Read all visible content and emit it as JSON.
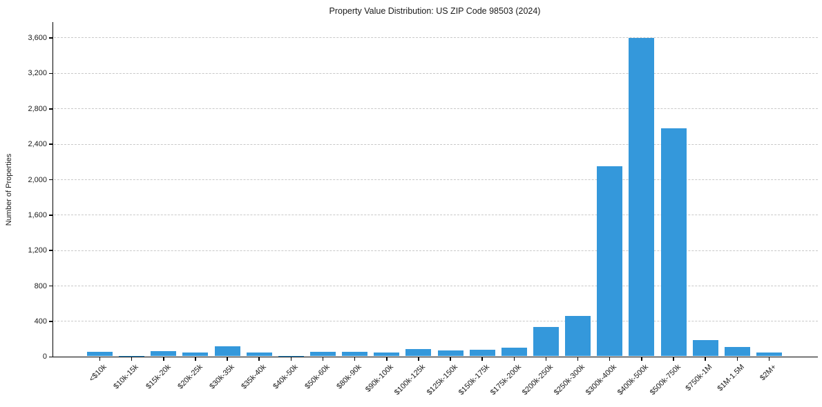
{
  "chart_data": {
    "type": "bar",
    "title": "Property Value Distribution: US ZIP Code 98503 (2024)",
    "xlabel": "",
    "ylabel": "Number of Properties",
    "categories": [
      "<$10k",
      "$10k-15k",
      "$15k-20k",
      "$20k-25k",
      "$30k-35k",
      "$35k-40k",
      "$40k-50k",
      "$50k-60k",
      "$80k-90k",
      "$90k-100k",
      "$100k-125k",
      "$125k-150k",
      "$150k-175k",
      "$175k-200k",
      "$200k-250k",
      "$250k-300k",
      "$300k-400k",
      "$400k-500k",
      "$500k-750k",
      "$750k-1M",
      "$1M-1.5M",
      "$2M+"
    ],
    "values": [
      55,
      10,
      65,
      50,
      115,
      45,
      10,
      55,
      55,
      45,
      90,
      75,
      80,
      100,
      340,
      460,
      2150,
      3600,
      2580,
      190,
      110,
      45
    ],
    "ylim": [
      0,
      3780
    ],
    "ytick_values": [
      0,
      400,
      800,
      1200,
      1600,
      2000,
      2400,
      2800,
      3200,
      3600
    ],
    "ytick_labels": [
      "0",
      "400",
      "800",
      "1,200",
      "1,600",
      "2,000",
      "2,400",
      "2,800",
      "3,200",
      "3,600"
    ],
    "grid": {
      "axis": "y",
      "style": "dashed",
      "color": "#c8c8c8"
    },
    "bar_color": "#3498db",
    "axis_color": "#000000",
    "text_color": "#1a1a1a",
    "legend": "none",
    "x_tick_rotation_deg": 45
  }
}
